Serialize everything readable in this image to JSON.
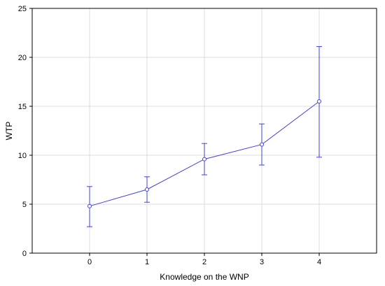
{
  "chart_data": {
    "type": "line",
    "title": "",
    "xlabel": "Knowledge on the WNP",
    "ylabel": "WTP",
    "x": [
      0,
      1,
      2,
      3,
      4
    ],
    "xlim": [
      -1,
      5
    ],
    "ylim": [
      0,
      25
    ],
    "x_ticks": [
      "0",
      "1",
      "2",
      "3",
      "4"
    ],
    "y_ticks": [
      "0",
      "5",
      "10",
      "15",
      "20",
      "25"
    ],
    "grid": true,
    "series": [
      {
        "values": [
          4.8,
          6.5,
          9.6,
          11.1,
          15.5
        ],
        "error_low": [
          2.7,
          5.2,
          8.0,
          9.0,
          9.8
        ],
        "error_high": [
          6.8,
          7.8,
          11.2,
          13.2,
          21.1
        ],
        "color": "#4040e0"
      }
    ]
  }
}
